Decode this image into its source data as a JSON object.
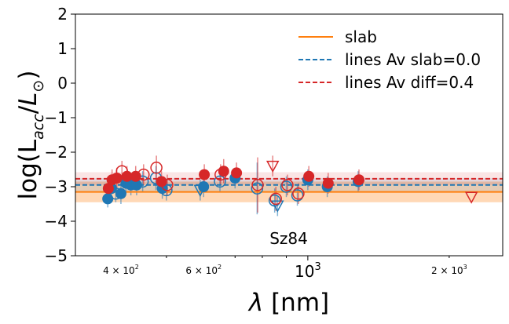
{
  "chart_data": {
    "type": "scatter",
    "xscale": "log",
    "xlim": [
      320,
      2600
    ],
    "ylim": [
      -5,
      2
    ],
    "xlabel": "λ [nm]",
    "ylabel": "log(L_acc/L_⊙)",
    "yticks": [
      {
        "value": 2,
        "label": "2"
      },
      {
        "value": 1,
        "label": "1"
      },
      {
        "value": 0,
        "label": "0"
      },
      {
        "value": -1,
        "label": "−1"
      },
      {
        "value": -2,
        "label": "−2"
      },
      {
        "value": -3,
        "label": "−3"
      },
      {
        "value": -4,
        "label": "−4"
      },
      {
        "value": -5,
        "label": "−5"
      }
    ],
    "xticks_major": [
      {
        "value": 1000,
        "label": "10",
        "sup": "3"
      }
    ],
    "xticks_minor": [
      {
        "value": 400,
        "label": "4 × 10",
        "sup": "2"
      },
      {
        "value": 600,
        "label": "6 × 10",
        "sup": "2"
      },
      {
        "value": 2000,
        "label": "2 × 10",
        "sup": "3"
      }
    ],
    "minor_tick_values": [
      300,
      500,
      700,
      800,
      900,
      2000
    ],
    "annotation": "Sz84",
    "annotation_pos": {
      "x": 1000,
      "y": -4.5
    },
    "slab": {
      "name": "slab",
      "value": -3.15,
      "band": [
        -3.45,
        -2.85
      ],
      "color": "#ff7f0e"
    },
    "hlines": [
      {
        "name": "lines Av slab=0.0",
        "value": -2.95,
        "band": [
          -3.15,
          -2.75
        ],
        "color": "#1f77b4"
      },
      {
        "name": "lines Av diff=0.4",
        "value": -2.77,
        "band": [
          -2.95,
          -2.58
        ],
        "color": "#d62728"
      }
    ],
    "series": [
      {
        "name": "lines Av slab=0.0",
        "color": "#1f77b4",
        "points": [
          {
            "x": 375,
            "y": -3.35,
            "err": 0.25,
            "m": "fc"
          },
          {
            "x": 382,
            "y": -3.05,
            "err": 0.3,
            "m": "fc"
          },
          {
            "x": 390,
            "y": -3.2,
            "err": 0.25,
            "m": "oc"
          },
          {
            "x": 400,
            "y": -3.2,
            "err": 0.3,
            "m": "fc"
          },
          {
            "x": 410,
            "y": -2.9,
            "err": 0.3,
            "m": "fc"
          },
          {
            "x": 420,
            "y": -2.95,
            "err": 0.3,
            "m": "fc"
          },
          {
            "x": 432,
            "y": -2.95,
            "err": 0.3,
            "m": "fc"
          },
          {
            "x": 445,
            "y": -2.85,
            "err": 0.3,
            "m": "oc"
          },
          {
            "x": 475,
            "y": -2.75,
            "err": 0.35,
            "m": "oc"
          },
          {
            "x": 490,
            "y": -3.05,
            "err": 0.3,
            "m": "fc"
          },
          {
            "x": 500,
            "y": -3.1,
            "err": 0.3,
            "m": "oc"
          },
          {
            "x": 590,
            "y": -3.1,
            "err": 0.3,
            "m": "tri"
          },
          {
            "x": 600,
            "y": -3.0,
            "err": 0.3,
            "m": "fc"
          },
          {
            "x": 650,
            "y": -2.85,
            "err": 0.3,
            "m": "oc"
          },
          {
            "x": 700,
            "y": -2.75,
            "err": 0.3,
            "m": "fc"
          },
          {
            "x": 780,
            "y": -3.05,
            "err": 0.75,
            "m": "oc"
          },
          {
            "x": 850,
            "y": -3.4,
            "err": 0.35,
            "m": "oc"
          },
          {
            "x": 862,
            "y": -3.55,
            "err": 0.3,
            "m": "tri"
          },
          {
            "x": 900,
            "y": -3.0,
            "err": 0.3,
            "m": "oc"
          },
          {
            "x": 950,
            "y": -3.25,
            "err": 0.3,
            "m": "oc"
          },
          {
            "x": 1000,
            "y": -2.8,
            "err": 0.3,
            "m": "fc"
          },
          {
            "x": 1100,
            "y": -3.0,
            "err": 0.3,
            "m": "fc"
          },
          {
            "x": 1280,
            "y": -2.85,
            "err": 0.3,
            "m": "fc"
          }
        ]
      },
      {
        "name": "lines Av diff=0.4",
        "color": "#d62728",
        "points": [
          {
            "x": 376,
            "y": -3.05,
            "err": 0.3,
            "m": "fc"
          },
          {
            "x": 383,
            "y": -2.8,
            "err": 0.3,
            "m": "fc"
          },
          {
            "x": 392,
            "y": -2.75,
            "err": 0.3,
            "m": "fc"
          },
          {
            "x": 402,
            "y": -2.55,
            "err": 0.3,
            "m": "oc"
          },
          {
            "x": 412,
            "y": -2.7,
            "err": 0.3,
            "m": "fc"
          },
          {
            "x": 430,
            "y": -2.7,
            "err": 0.3,
            "m": "fc"
          },
          {
            "x": 447,
            "y": -2.65,
            "err": 0.3,
            "m": "oc"
          },
          {
            "x": 476,
            "y": -2.45,
            "err": 0.35,
            "m": "oc"
          },
          {
            "x": 488,
            "y": -2.85,
            "err": 0.3,
            "m": "fc"
          },
          {
            "x": 502,
            "y": -2.95,
            "err": 0.3,
            "m": "oc"
          },
          {
            "x": 602,
            "y": -2.65,
            "err": 0.3,
            "m": "fc"
          },
          {
            "x": 652,
            "y": -2.65,
            "err": 0.3,
            "m": "oc"
          },
          {
            "x": 662,
            "y": -2.55,
            "err": 0.35,
            "m": "fc"
          },
          {
            "x": 705,
            "y": -2.6,
            "err": 0.3,
            "m": "fc"
          },
          {
            "x": 782,
            "y": -2.95,
            "err": 0.8,
            "m": "oc"
          },
          {
            "x": 842,
            "y": -2.4,
            "err": 0.3,
            "m": "tri"
          },
          {
            "x": 855,
            "y": -3.35,
            "err": 0.35,
            "m": "oc"
          },
          {
            "x": 905,
            "y": -2.95,
            "err": 0.3,
            "m": "oc"
          },
          {
            "x": 955,
            "y": -3.2,
            "err": 0.3,
            "m": "oc"
          },
          {
            "x": 1005,
            "y": -2.7,
            "err": 0.3,
            "m": "fc"
          },
          {
            "x": 1105,
            "y": -2.9,
            "err": 0.3,
            "m": "fc"
          },
          {
            "x": 1285,
            "y": -2.8,
            "err": 0.3,
            "m": "fc"
          },
          {
            "x": 2230,
            "y": -3.3,
            "err": 0,
            "m": "tri"
          }
        ]
      }
    ],
    "legend": [
      {
        "label": "slab",
        "color": "#ff7f0e",
        "style": "solid"
      },
      {
        "label": "lines Av slab=0.0",
        "color": "#1f77b4",
        "style": "dashed"
      },
      {
        "label": "lines Av diff=0.4",
        "color": "#d62728",
        "style": "dashed"
      }
    ],
    "legend_position": "top-right"
  }
}
